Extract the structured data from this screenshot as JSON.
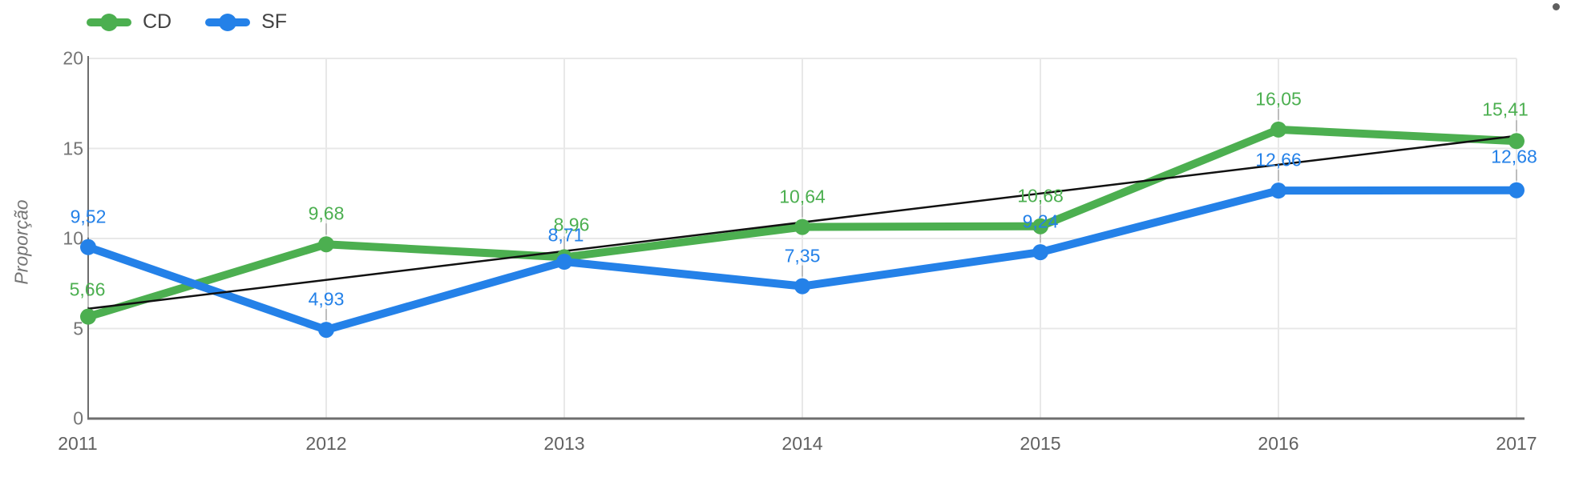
{
  "chart_data": {
    "type": "line",
    "categories": [
      "2011",
      "2012",
      "2013",
      "2014",
      "2015",
      "2016",
      "2017"
    ],
    "series": [
      {
        "name": "CD",
        "color": "#4CAF50",
        "values": [
          5.66,
          9.68,
          8.96,
          10.64,
          10.68,
          16.05,
          15.41
        ],
        "labels": [
          "5,66",
          "9,68",
          "8,96",
          "10,64",
          "10,68",
          "16,05",
          "15,41"
        ]
      },
      {
        "name": "SF",
        "color": "#2481E8",
        "values": [
          9.52,
          4.93,
          8.71,
          7.35,
          9.24,
          12.66,
          12.68
        ],
        "labels": [
          "9,52",
          "4,93",
          "8,71",
          "7,35",
          "9,24",
          "12,66",
          "12,68"
        ]
      }
    ],
    "trendline": {
      "color": "#111111",
      "start_value": 6.1,
      "end_value": 15.7
    },
    "title": "",
    "xlabel": "",
    "ylabel": "Proporção",
    "ylim": [
      0,
      20
    ],
    "yticks": [
      0,
      5,
      10,
      15,
      20
    ],
    "ytick_labels": [
      "0",
      "5",
      "10",
      "15",
      "20"
    ],
    "grid": true,
    "legend_position": "top-left",
    "value_label_decimal": "comma"
  },
  "legend": {
    "items": [
      {
        "label": "CD",
        "color": "#4CAF50"
      },
      {
        "label": "SF",
        "color": "#2481E8"
      }
    ]
  }
}
